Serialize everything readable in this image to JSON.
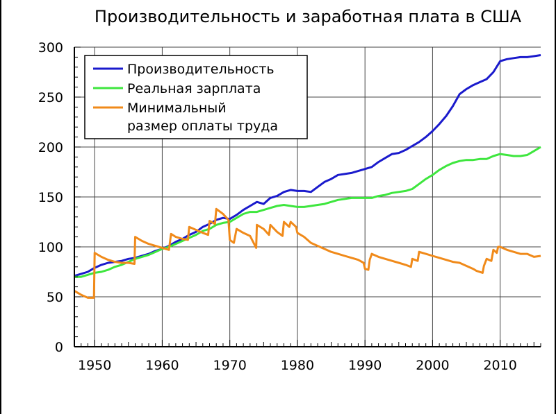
{
  "chart_data": {
    "type": "line",
    "title": "Производительность и заработная плата в США",
    "xlabel": "",
    "ylabel": "",
    "xlim": [
      1947,
      2016
    ],
    "ylim": [
      0,
      300
    ],
    "xticks": [
      1950,
      1960,
      1970,
      1980,
      1990,
      2000,
      2010
    ],
    "yticks": [
      0,
      50,
      100,
      150,
      200,
      250,
      300
    ],
    "grid": "vertical lines at decades, horizontal lines at every 50",
    "legend_position": "top-left",
    "series": [
      {
        "name": "Производительность",
        "color": "#1a1acc",
        "points": [
          [
            1947,
            71
          ],
          [
            1948,
            73
          ],
          [
            1949,
            75
          ],
          [
            1950,
            79
          ],
          [
            1951,
            82
          ],
          [
            1952,
            84
          ],
          [
            1953,
            85
          ],
          [
            1954,
            86
          ],
          [
            1955,
            88
          ],
          [
            1956,
            89
          ],
          [
            1957,
            91
          ],
          [
            1958,
            93
          ],
          [
            1959,
            96
          ],
          [
            1960,
            98
          ],
          [
            1961,
            101
          ],
          [
            1962,
            105
          ],
          [
            1963,
            108
          ],
          [
            1964,
            112
          ],
          [
            1965,
            115
          ],
          [
            1966,
            120
          ],
          [
            1967,
            123
          ],
          [
            1968,
            127
          ],
          [
            1969,
            129
          ],
          [
            1970,
            128
          ],
          [
            1971,
            132
          ],
          [
            1972,
            137
          ],
          [
            1973,
            141
          ],
          [
            1974,
            145
          ],
          [
            1975,
            143
          ],
          [
            1976,
            149
          ],
          [
            1977,
            151
          ],
          [
            1978,
            155
          ],
          [
            1979,
            157
          ],
          [
            1980,
            156
          ],
          [
            1981,
            156
          ],
          [
            1982,
            155
          ],
          [
            1983,
            160
          ],
          [
            1984,
            165
          ],
          [
            1985,
            168
          ],
          [
            1986,
            172
          ],
          [
            1987,
            173
          ],
          [
            1988,
            174
          ],
          [
            1989,
            176
          ],
          [
            1990,
            178
          ],
          [
            1991,
            180
          ],
          [
            1992,
            185
          ],
          [
            1993,
            189
          ],
          [
            1994,
            193
          ],
          [
            1995,
            194
          ],
          [
            1996,
            197
          ],
          [
            1997,
            201
          ],
          [
            1998,
            205
          ],
          [
            1999,
            210
          ],
          [
            2000,
            216
          ],
          [
            2001,
            223
          ],
          [
            2002,
            231
          ],
          [
            2003,
            241
          ],
          [
            2004,
            253
          ],
          [
            2005,
            258
          ],
          [
            2006,
            262
          ],
          [
            2007,
            265
          ],
          [
            2008,
            268
          ],
          [
            2009,
            275
          ],
          [
            2010,
            286
          ],
          [
            2011,
            288
          ],
          [
            2012,
            289
          ],
          [
            2013,
            290
          ],
          [
            2014,
            290
          ],
          [
            2015,
            291
          ],
          [
            2016,
            292
          ]
        ]
      },
      {
        "name": "Реальная зарплата",
        "color": "#3ee63e",
        "points": [
          [
            1947,
            70
          ],
          [
            1948,
            70
          ],
          [
            1949,
            72
          ],
          [
            1950,
            74
          ],
          [
            1951,
            75
          ],
          [
            1952,
            77
          ],
          [
            1953,
            80
          ],
          [
            1954,
            82
          ],
          [
            1955,
            85
          ],
          [
            1956,
            88
          ],
          [
            1957,
            90
          ],
          [
            1958,
            92
          ],
          [
            1959,
            95
          ],
          [
            1960,
            98
          ],
          [
            1961,
            100
          ],
          [
            1962,
            103
          ],
          [
            1963,
            106
          ],
          [
            1964,
            109
          ],
          [
            1965,
            112
          ],
          [
            1966,
            116
          ],
          [
            1967,
            118
          ],
          [
            1968,
            122
          ],
          [
            1969,
            124
          ],
          [
            1970,
            125
          ],
          [
            1971,
            129
          ],
          [
            1972,
            133
          ],
          [
            1973,
            135
          ],
          [
            1974,
            135
          ],
          [
            1975,
            137
          ],
          [
            1976,
            139
          ],
          [
            1977,
            141
          ],
          [
            1978,
            142
          ],
          [
            1979,
            141
          ],
          [
            1980,
            140
          ],
          [
            1981,
            140
          ],
          [
            1982,
            141
          ],
          [
            1983,
            142
          ],
          [
            1984,
            143
          ],
          [
            1985,
            145
          ],
          [
            1986,
            147
          ],
          [
            1987,
            148
          ],
          [
            1988,
            149
          ],
          [
            1989,
            149
          ],
          [
            1990,
            149
          ],
          [
            1991,
            149
          ],
          [
            1992,
            151
          ],
          [
            1993,
            152
          ],
          [
            1994,
            154
          ],
          [
            1995,
            155
          ],
          [
            1996,
            156
          ],
          [
            1997,
            158
          ],
          [
            1998,
            163
          ],
          [
            1999,
            168
          ],
          [
            2000,
            172
          ],
          [
            2001,
            177
          ],
          [
            2002,
            181
          ],
          [
            2003,
            184
          ],
          [
            2004,
            186
          ],
          [
            2005,
            187
          ],
          [
            2006,
            187
          ],
          [
            2007,
            188
          ],
          [
            2008,
            188
          ],
          [
            2009,
            191
          ],
          [
            2010,
            193
          ],
          [
            2011,
            192
          ],
          [
            2012,
            191
          ],
          [
            2013,
            191
          ],
          [
            2014,
            192
          ],
          [
            2015,
            196
          ],
          [
            2016,
            200
          ]
        ]
      },
      {
        "name": "Минимальный размер оплаты труда",
        "color": "#f08a1a",
        "points": [
          [
            1947,
            56
          ],
          [
            1948,
            52
          ],
          [
            1949,
            49
          ],
          [
            1949.9,
            49
          ],
          [
            1950,
            94
          ],
          [
            1951,
            90
          ],
          [
            1952,
            87
          ],
          [
            1953,
            85
          ],
          [
            1954,
            84
          ],
          [
            1955,
            84
          ],
          [
            1955.9,
            83
          ],
          [
            1956,
            110
          ],
          [
            1957,
            106
          ],
          [
            1958,
            103
          ],
          [
            1959,
            101
          ],
          [
            1960,
            99
          ],
          [
            1961,
            97
          ],
          [
            1961.3,
            113
          ],
          [
            1962,
            110
          ],
          [
            1963,
            108
          ],
          [
            1963.8,
            107
          ],
          [
            1964,
            120
          ],
          [
            1965,
            117
          ],
          [
            1966,
            114
          ],
          [
            1966.8,
            112
          ],
          [
            1967,
            126
          ],
          [
            1967.8,
            123
          ],
          [
            1968,
            138
          ],
          [
            1969,
            133
          ],
          [
            1969.8,
            127
          ],
          [
            1970,
            107
          ],
          [
            1970.6,
            104
          ],
          [
            1971,
            118
          ],
          [
            1972,
            114
          ],
          [
            1973,
            111
          ],
          [
            1973.9,
            99
          ],
          [
            1974,
            122
          ],
          [
            1975,
            118
          ],
          [
            1975.8,
            112
          ],
          [
            1976,
            122
          ],
          [
            1977,
            115
          ],
          [
            1977.8,
            111
          ],
          [
            1978,
            125
          ],
          [
            1978.8,
            120
          ],
          [
            1979,
            125
          ],
          [
            1979.8,
            120
          ],
          [
            1980,
            114
          ],
          [
            1981,
            110
          ],
          [
            1982,
            104
          ],
          [
            1983,
            101
          ],
          [
            1984,
            98
          ],
          [
            1985,
            95
          ],
          [
            1986,
            93
          ],
          [
            1987,
            91
          ],
          [
            1988,
            89
          ],
          [
            1989,
            87
          ],
          [
            1989.8,
            84
          ],
          [
            1990,
            78
          ],
          [
            1990.5,
            77
          ],
          [
            1990.7,
            87
          ],
          [
            1991,
            93
          ],
          [
            1992,
            90
          ],
          [
            1993,
            88
          ],
          [
            1994,
            86
          ],
          [
            1995,
            84
          ],
          [
            1996,
            82
          ],
          [
            1996.8,
            80
          ],
          [
            1997,
            88
          ],
          [
            1997.8,
            86
          ],
          [
            1998,
            95
          ],
          [
            1999,
            93
          ],
          [
            2000,
            91
          ],
          [
            2001,
            89
          ],
          [
            2002,
            87
          ],
          [
            2003,
            85
          ],
          [
            2004,
            84
          ],
          [
            2005,
            81
          ],
          [
            2006,
            78
          ],
          [
            2006.5,
            76
          ],
          [
            2007.4,
            74
          ],
          [
            2007.6,
            81
          ],
          [
            2008,
            88
          ],
          [
            2008.7,
            86
          ],
          [
            2009,
            97
          ],
          [
            2009.5,
            94
          ],
          [
            2009.7,
            100
          ],
          [
            2010,
            100
          ],
          [
            2011,
            97
          ],
          [
            2012,
            95
          ],
          [
            2013,
            93
          ],
          [
            2014,
            93
          ],
          [
            2015,
            90
          ],
          [
            2016,
            91
          ]
        ]
      }
    ],
    "legend": {
      "entries": [
        {
          "series": 0,
          "lines": [
            "Производительность"
          ]
        },
        {
          "series": 1,
          "lines": [
            "Реальная зарплата"
          ]
        },
        {
          "series": 2,
          "lines": [
            "Минимальный",
            "размер оплаты труда"
          ]
        }
      ]
    }
  }
}
